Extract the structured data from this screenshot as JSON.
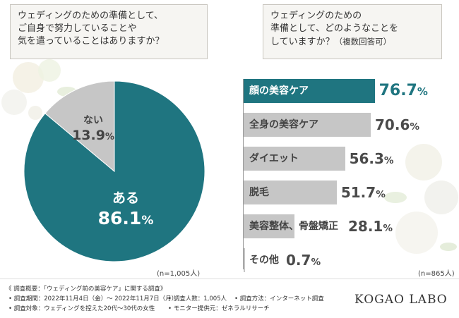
{
  "colors": {
    "accent": "#1f7580",
    "gray": "#c6c6c6",
    "box_bg": "#f6f5f2"
  },
  "q1": {
    "lines": [
      "ウェディングのための準備として、",
      "ご自身で努力していることや",
      "気を遣っていることはありますか？"
    ]
  },
  "q2": {
    "lines": [
      "ウェディングのための",
      "準備として、どのようなことを"
    ],
    "line3": "していますか？",
    "line3_note": "（複数回答可）"
  },
  "chart_data": [
    {
      "type": "pie",
      "title": "ウェディングのための準備として、ご自身で努力していることや気を遣っていることはありますか？",
      "slices": [
        {
          "label": "ある",
          "value": 86.1,
          "value_main": "86.1",
          "unit": "%",
          "color": "#1f7580"
        },
        {
          "label": "ない",
          "value": 13.9,
          "value_main": "13.9",
          "unit": "%",
          "color": "#c6c6c6"
        }
      ],
      "n": "(n=1,005人)"
    },
    {
      "type": "bar",
      "orientation": "horizontal",
      "title": "ウェディングのための準備として、どのようなことをしていますか？（複数回答可）",
      "categories": [
        "顔の美容ケア",
        "全身の美容ケア",
        "ダイエット",
        "脱毛",
        "美容整体、骨盤矯正",
        "その他"
      ],
      "values": [
        76.7,
        70.6,
        56.3,
        51.7,
        28.1,
        0.7
      ],
      "value_main": [
        "76.7",
        "70.6",
        "56.3",
        "51.7",
        "28.1",
        "0.7"
      ],
      "unit": "%",
      "xlim": [
        0,
        100
      ],
      "highlight_index": 0,
      "n": "(n=865人)"
    }
  ],
  "footer": {
    "title": "《 調査概要：「ウェディング前の美容ケア」に関する調査》",
    "period": "• 調査期間：2022年11月4日（金）～ 2022年11月7日（月）",
    "count": "• 調査人数：1,005人",
    "method": "• 調査方法：インターネット調査",
    "target": "• 調査対象：ウェディングを控えた20代～30代の女性",
    "provider": "• モニター提供元：ゼネラルリサーチ"
  },
  "brand": "KOGAO LABO"
}
